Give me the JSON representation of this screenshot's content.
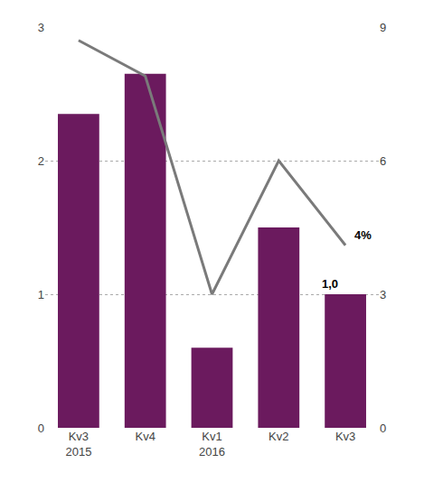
{
  "chart_data": {
    "type": "bar",
    "categories": [
      "Kv3\n2015",
      "Kv4",
      "Kv1\n2016",
      "Kv2",
      "Kv3"
    ],
    "series": [
      {
        "type": "bar",
        "color": "#6B1A5E",
        "values": [
          2.35,
          2.65,
          0.6,
          1.5,
          1.0
        ]
      },
      {
        "type": "line",
        "color": "#7a7a7a",
        "axis": "y2",
        "values": [
          8.7,
          7.9,
          3.0,
          6.0,
          4.1
        ]
      }
    ],
    "ylim": [
      0,
      3
    ],
    "yticks": [
      0,
      1,
      2,
      3
    ],
    "y2lim": [
      0,
      9
    ],
    "y2ticks": [
      0,
      3,
      6,
      9
    ],
    "grid": true,
    "annotations": [
      {
        "text": "1,0",
        "index": 4,
        "y": 1.0
      },
      {
        "text": "4%",
        "index": 4,
        "y": 4.1,
        "axis": "y2"
      }
    ]
  }
}
